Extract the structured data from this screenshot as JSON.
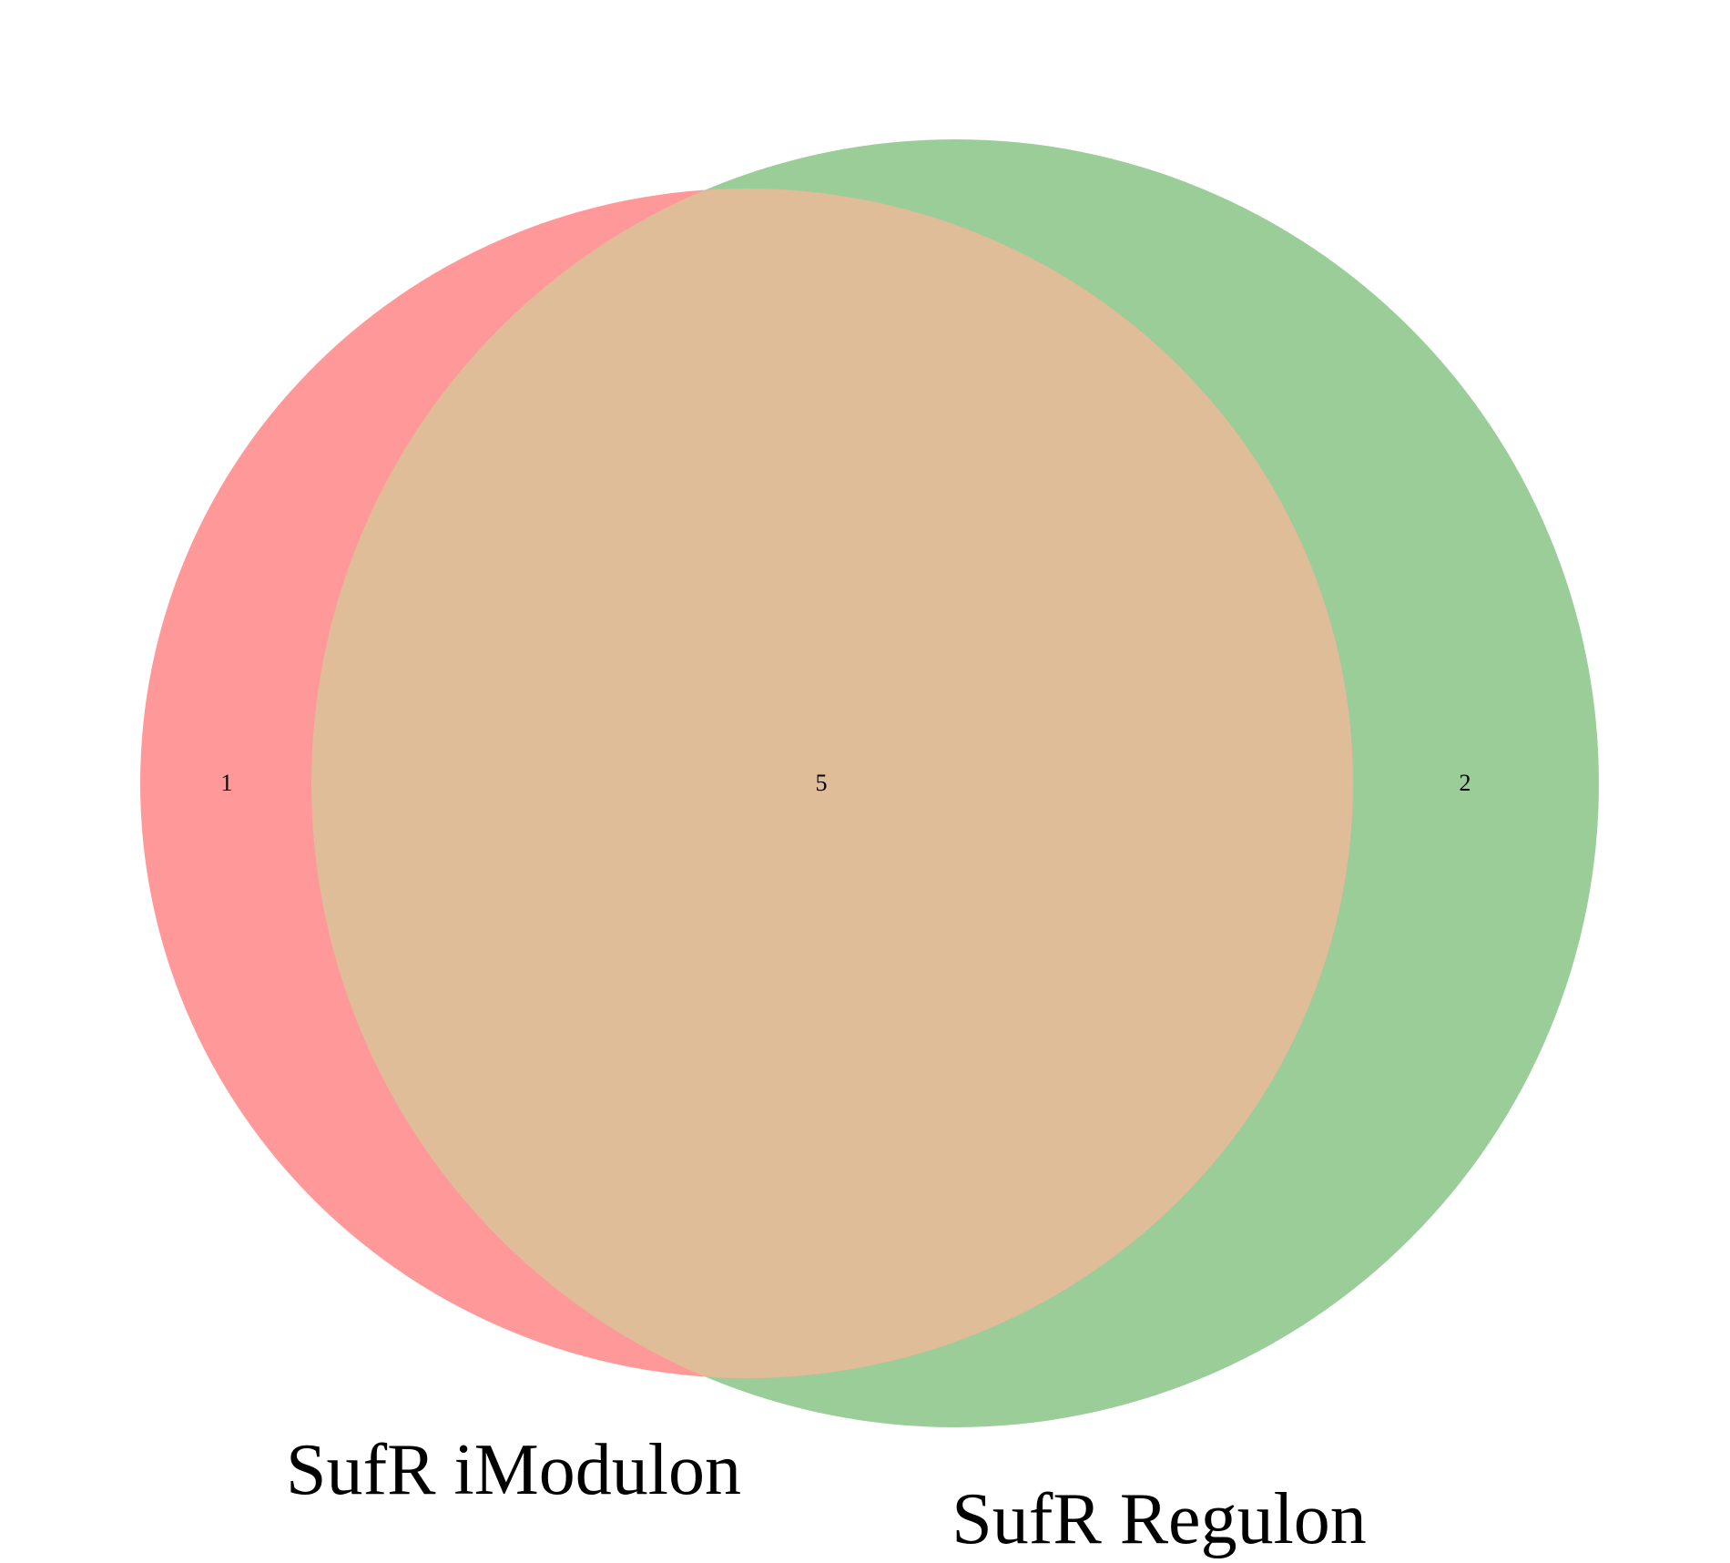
{
  "diagram": {
    "type": "venn2",
    "sets": [
      {
        "name": "SufR iModulon",
        "only_count": "1",
        "color": "#ff9999"
      },
      {
        "name": "SufR Regulon",
        "only_count": "2",
        "color": "#9bcd99"
      }
    ],
    "intersection": {
      "count": "5",
      "color": "#e0bd99"
    }
  }
}
